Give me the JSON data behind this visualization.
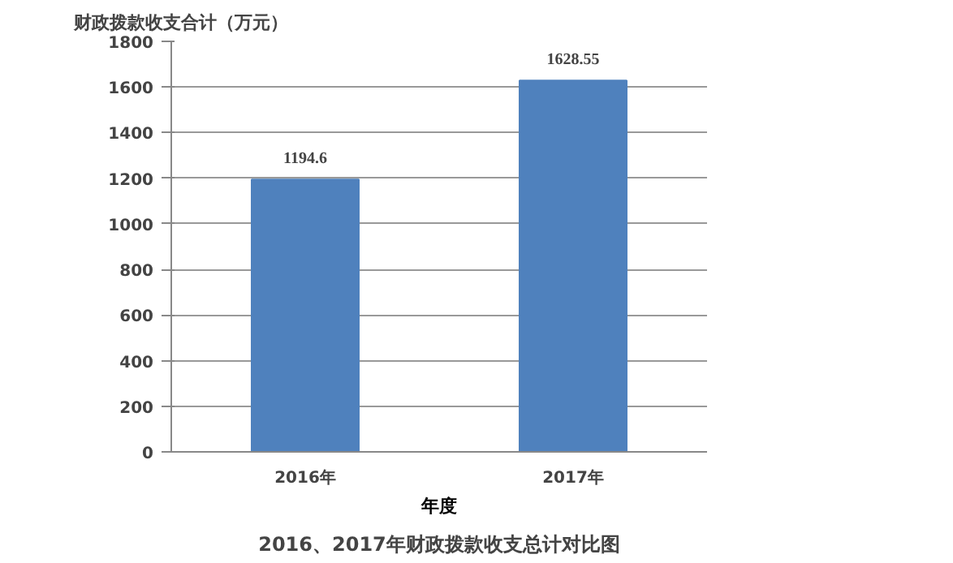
{
  "chart_data": {
    "type": "bar",
    "title": "2016、2017年财政拨款收支总计对比图",
    "ylabel": "财政拨款收支合计（万元）",
    "xlabel": "年度",
    "categories": [
      "2016年",
      "2017年"
    ],
    "values": [
      1194.6,
      1628.55
    ],
    "color": "#4f81bd",
    "ylim": [
      0,
      1800
    ],
    "yticks": [
      0,
      200,
      400,
      600,
      800,
      1000,
      1200,
      1400,
      1600,
      1800
    ],
    "grid": "y",
    "data_labels": true
  }
}
